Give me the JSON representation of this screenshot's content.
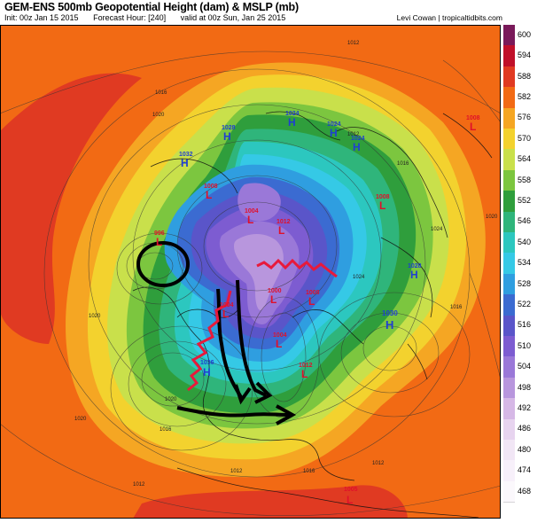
{
  "header": {
    "title": "GEM-ENS 500mb Geopotential Height (dam) & MSLP (mb)",
    "init": "Init: 00z Jan 15 2015",
    "forecast_hour": "Forecast Hour: [240]",
    "valid": "valid at 00z Sun, Jan 25 2015",
    "credit": "Levi Cowan | tropicaltidbits.com"
  },
  "colorbar": {
    "levels": [
      "600",
      "594",
      "588",
      "582",
      "576",
      "570",
      "564",
      "558",
      "552",
      "546",
      "540",
      "534",
      "528",
      "522",
      "516",
      "510",
      "504",
      "498",
      "492",
      "486",
      "480",
      "474",
      "468"
    ],
    "colors": [
      "#7a1a5a",
      "#c0102a",
      "#e03a22",
      "#f26a14",
      "#f5a623",
      "#f3d22e",
      "#c9e04b",
      "#7cc63f",
      "#2f9e3c",
      "#2fb57b",
      "#2cc7bf",
      "#35c9e6",
      "#2f9ee0",
      "#3b6bd1",
      "#5a55c9",
      "#7d5cd1",
      "#9a78d8",
      "#b896dd",
      "#d6b8e6",
      "#e7d4ef",
      "#f1e6f5",
      "#f7f0fa",
      "#fbf8fc"
    ]
  },
  "pressure_systems": [
    {
      "type": "L",
      "value": "996",
      "color": "#e0102a"
    },
    {
      "type": "H",
      "value": "1036",
      "color": "#1f3fd1"
    },
    {
      "type": "H",
      "value": "1032",
      "color": "#1f3fd1"
    },
    {
      "type": "L",
      "value": "1008",
      "color": "#e0102a"
    },
    {
      "type": "H",
      "value": "1028",
      "color": "#1f3fd1"
    },
    {
      "type": "L",
      "value": "1004",
      "color": "#e0102a"
    },
    {
      "type": "L",
      "value": "1012",
      "color": "#e0102a"
    },
    {
      "type": "H",
      "value": "1024",
      "color": "#1f3fd1"
    },
    {
      "type": "L",
      "value": "1008",
      "color": "#e0102a"
    },
    {
      "type": "H",
      "value": "1028",
      "color": "#1f3fd1"
    },
    {
      "type": "H",
      "value": "1030",
      "color": "#1f3fd1"
    },
    {
      "type": "H",
      "value": "1024",
      "color": "#1f3fd1"
    },
    {
      "type": "L",
      "value": "1000",
      "color": "#e0102a"
    },
    {
      "type": "L",
      "value": "1008",
      "color": "#e0102a"
    },
    {
      "type": "L",
      "value": "1004",
      "color": "#e0102a"
    },
    {
      "type": "L",
      "value": "1004",
      "color": "#e0102a"
    },
    {
      "type": "L",
      "value": "1012",
      "color": "#e0102a"
    },
    {
      "type": "L",
      "value": "1008",
      "color": "#e0102a"
    },
    {
      "type": "L",
      "value": "1005",
      "color": "#e0102a"
    },
    {
      "type": "H",
      "value": "1024",
      "color": "#1f3fd1"
    }
  ],
  "isobar_labels": [
    "1012",
    "1016",
    "1020",
    "1012",
    "1016",
    "1020",
    "1024",
    "1020",
    "1016",
    "1012",
    "1016",
    "1012",
    "1020",
    "1016",
    "1020",
    "1024",
    "1012"
  ]
}
